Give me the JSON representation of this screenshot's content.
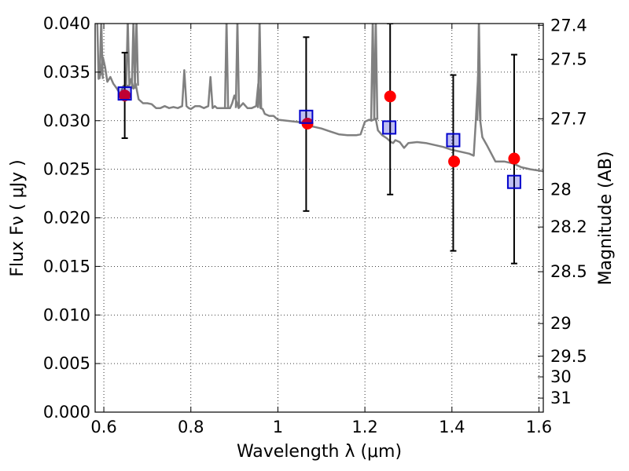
{
  "chart_data": {
    "type": "scatter",
    "xlabel": "Wavelength  λ (μm)",
    "ylabel": "Flux  Fν  ( μJy )",
    "ylabel_right": "Magnitude (AB)",
    "xlim": [
      0.58,
      1.61
    ],
    "ylim": [
      0.0,
      0.04
    ],
    "grid": true,
    "x_ticks": [
      {
        "value": 0.6,
        "label": "0.6"
      },
      {
        "value": 0.8,
        "label": "0.8"
      },
      {
        "value": 1.0,
        "label": "1"
      },
      {
        "value": 1.2,
        "label": "1.2"
      },
      {
        "value": 1.4,
        "label": "1.4"
      },
      {
        "value": 1.6,
        "label": "1.6"
      }
    ],
    "y_ticks": [
      {
        "value": 0.0,
        "label": "0.000"
      },
      {
        "value": 0.005,
        "label": "0.005"
      },
      {
        "value": 0.01,
        "label": "0.010"
      },
      {
        "value": 0.015,
        "label": "0.015"
      },
      {
        "value": 0.02,
        "label": "0.020"
      },
      {
        "value": 0.025,
        "label": "0.025"
      },
      {
        "value": 0.03,
        "label": "0.030"
      },
      {
        "value": 0.035,
        "label": "0.035"
      },
      {
        "value": 0.04,
        "label": "0.040"
      }
    ],
    "right_ticks": [
      {
        "mag": 27.4,
        "label": "27.4"
      },
      {
        "mag": 27.5,
        "label": "27.5"
      },
      {
        "mag": 27.7,
        "label": "27.7"
      },
      {
        "mag": 28.0,
        "label": "28"
      },
      {
        "mag": 28.2,
        "label": "28.2"
      },
      {
        "mag": 28.5,
        "label": "28.5"
      },
      {
        "mag": 29.0,
        "label": "29"
      },
      {
        "mag": 29.5,
        "label": "29.5"
      },
      {
        "mag": 30.0,
        "label": "30"
      },
      {
        "mag": 31.0,
        "label": "31"
      }
    ],
    "series": [
      {
        "kind": "spectrum",
        "color": "#808080",
        "x": [
          0.585,
          0.588,
          0.593,
          0.598,
          0.603,
          0.608,
          0.615,
          0.622,
          0.63,
          0.638,
          0.645,
          0.652,
          0.658,
          0.663,
          0.668,
          0.673,
          0.68,
          0.69,
          0.7,
          0.71,
          0.72,
          0.73,
          0.74,
          0.75,
          0.76,
          0.77,
          0.78,
          0.785,
          0.79,
          0.795,
          0.8,
          0.81,
          0.82,
          0.83,
          0.84,
          0.845,
          0.85,
          0.855,
          0.86,
          0.87,
          0.875,
          0.88,
          0.885,
          0.89,
          0.895,
          0.9,
          0.91,
          0.92,
          0.93,
          0.94,
          0.95,
          0.955,
          0.96,
          0.965,
          0.97,
          0.98,
          0.99,
          1.0,
          1.02,
          1.04,
          1.06,
          1.08,
          1.1,
          1.12,
          1.14,
          1.16,
          1.18,
          1.19,
          1.2,
          1.21,
          1.215,
          1.22,
          1.225,
          1.23,
          1.24,
          1.25,
          1.26,
          1.265,
          1.27,
          1.28,
          1.29,
          1.3,
          1.32,
          1.34,
          1.36,
          1.38,
          1.4,
          1.42,
          1.44,
          1.45,
          1.455,
          1.46,
          1.465,
          1.47,
          1.48,
          1.5,
          1.52,
          1.54,
          1.56,
          1.58,
          1.61
        ],
        "y": [
          0.04,
          0.0343,
          0.0348,
          0.0365,
          0.0355,
          0.034,
          0.0345,
          0.0338,
          0.0333,
          0.0327,
          0.0336,
          0.0336,
          0.0336,
          0.0343,
          0.0333,
          0.0338,
          0.0322,
          0.0318,
          0.0318,
          0.0317,
          0.0313,
          0.0313,
          0.0315,
          0.0313,
          0.0314,
          0.0313,
          0.0315,
          0.0352,
          0.0315,
          0.0313,
          0.0312,
          0.0315,
          0.0315,
          0.0313,
          0.0315,
          0.0345,
          0.0313,
          0.0315,
          0.0313,
          0.0313,
          0.0313,
          0.0313,
          0.0313,
          0.0313,
          0.0318,
          0.0326,
          0.0313,
          0.0318,
          0.0313,
          0.0313,
          0.0315,
          0.0338,
          0.0313,
          0.0312,
          0.0307,
          0.0305,
          0.0305,
          0.0301,
          0.03,
          0.0299,
          0.0298,
          0.0294,
          0.0292,
          0.0289,
          0.0286,
          0.0285,
          0.0285,
          0.0286,
          0.0299,
          0.0301,
          0.03,
          0.0301,
          0.0302,
          0.029,
          0.0285,
          0.0282,
          0.0278,
          0.0277,
          0.028,
          0.0278,
          0.0272,
          0.0277,
          0.0278,
          0.0277,
          0.0275,
          0.0273,
          0.027,
          0.0268,
          0.0266,
          0.0264,
          0.03,
          0.0345,
          0.03,
          0.0283,
          0.0275,
          0.0258,
          0.0258,
          0.0256,
          0.0252,
          0.025,
          0.0248
        ],
        "spikes": [
          {
            "x": 0.594,
            "base": 0.0343
          },
          {
            "x": 0.655,
            "base": 0.0336
          },
          {
            "x": 0.668,
            "base": 0.0333
          },
          {
            "x": 0.675,
            "base": 0.0336
          },
          {
            "x": 0.882,
            "base": 0.0313
          },
          {
            "x": 0.907,
            "base": 0.0313
          },
          {
            "x": 0.958,
            "base": 0.0313
          },
          {
            "x": 1.218,
            "base": 0.0301
          },
          {
            "x": 1.225,
            "base": 0.0301
          },
          {
            "x": 1.462,
            "base": 0.03
          }
        ]
      },
      {
        "kind": "observed",
        "color": "#ff0000",
        "x": [
          0.648,
          1.068,
          1.258,
          1.405,
          1.543
        ],
        "y": [
          0.0326,
          0.0297,
          0.0325,
          0.0258,
          0.0261
        ]
      },
      {
        "kind": "model",
        "color": "#0000cc",
        "x": [
          0.648,
          1.065,
          1.256,
          1.403,
          1.543
        ],
        "y": [
          0.0328,
          0.0304,
          0.0293,
          0.028,
          0.0237
        ]
      },
      {
        "kind": "errorbars",
        "color": "#000000",
        "x": [
          0.648,
          1.065,
          1.258,
          1.403,
          1.543
        ],
        "low": [
          0.0282,
          0.0207,
          0.0224,
          0.0166,
          0.0153
        ],
        "high": [
          0.037,
          0.0386,
          0.04,
          0.0347,
          0.0368
        ]
      }
    ]
  }
}
